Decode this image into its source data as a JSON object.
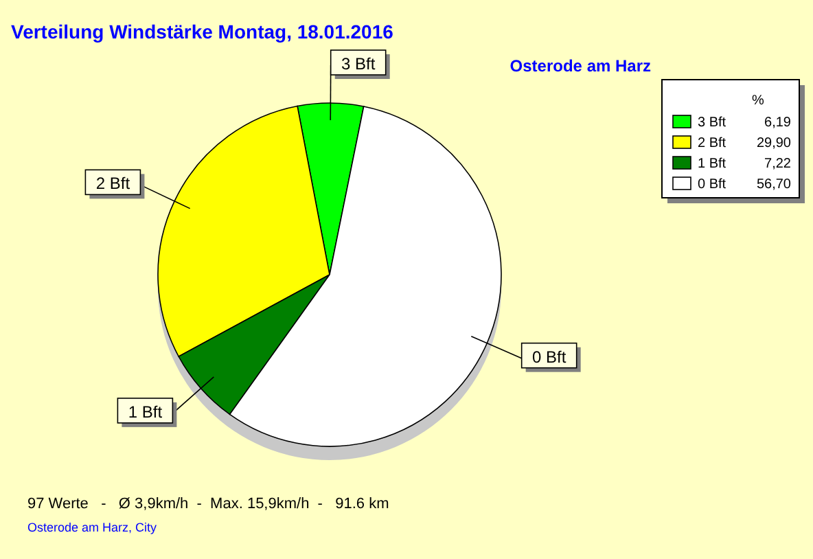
{
  "chart_data": {
    "type": "pie",
    "title": "Verteilung Windstärke  Montag, 18.01.2016",
    "subtitle": "Osterode am Harz",
    "categories": [
      "3 Bft",
      "2 Bft",
      "1 Bft",
      "0 Bft"
    ],
    "values": [
      6.19,
      29.9,
      7.22,
      56.7
    ],
    "colors": [
      "#00ff00",
      "#ffff00",
      "#008000",
      "#ffffff"
    ],
    "value_labels": [
      "6,19",
      "29,90",
      "7,22",
      "56,70"
    ],
    "legend_title": "%",
    "legend": "top right",
    "annotations": [
      "97 Werte   -   Ø 3,9km/h  -  Max. 15,9km/h  -   91.6 km",
      "Osterode am Harz, City"
    ]
  }
}
